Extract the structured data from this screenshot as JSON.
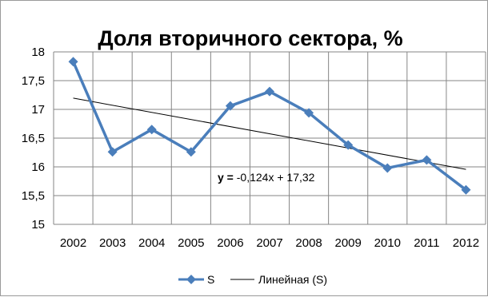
{
  "chart_data": {
    "type": "line",
    "title": "Доля вторичного сектора, %",
    "x": [
      "2002",
      "2003",
      "2004",
      "2005",
      "2006",
      "2007",
      "2008",
      "2009",
      "2010",
      "2011",
      "2012"
    ],
    "series": [
      {
        "name": "S",
        "values": [
          17.83,
          16.26,
          16.65,
          16.26,
          17.06,
          17.31,
          16.94,
          16.38,
          15.98,
          16.12,
          15.6
        ],
        "color": "#4a7ebb",
        "marker": "diamond"
      }
    ],
    "trendline": {
      "name": "Линейная (S)",
      "slope": -0.124,
      "intercept": 17.32,
      "equation_prefix": "y = ",
      "equation_rest": "-0,124x + 17,32",
      "color": "#000000"
    },
    "y_ticks": [
      "18",
      "17,5",
      "17",
      "16,5",
      "16",
      "15,5",
      "15"
    ],
    "ylim": [
      15,
      18
    ],
    "y_tick_step": 0.5,
    "grid": true,
    "legend_position": "bottom"
  }
}
